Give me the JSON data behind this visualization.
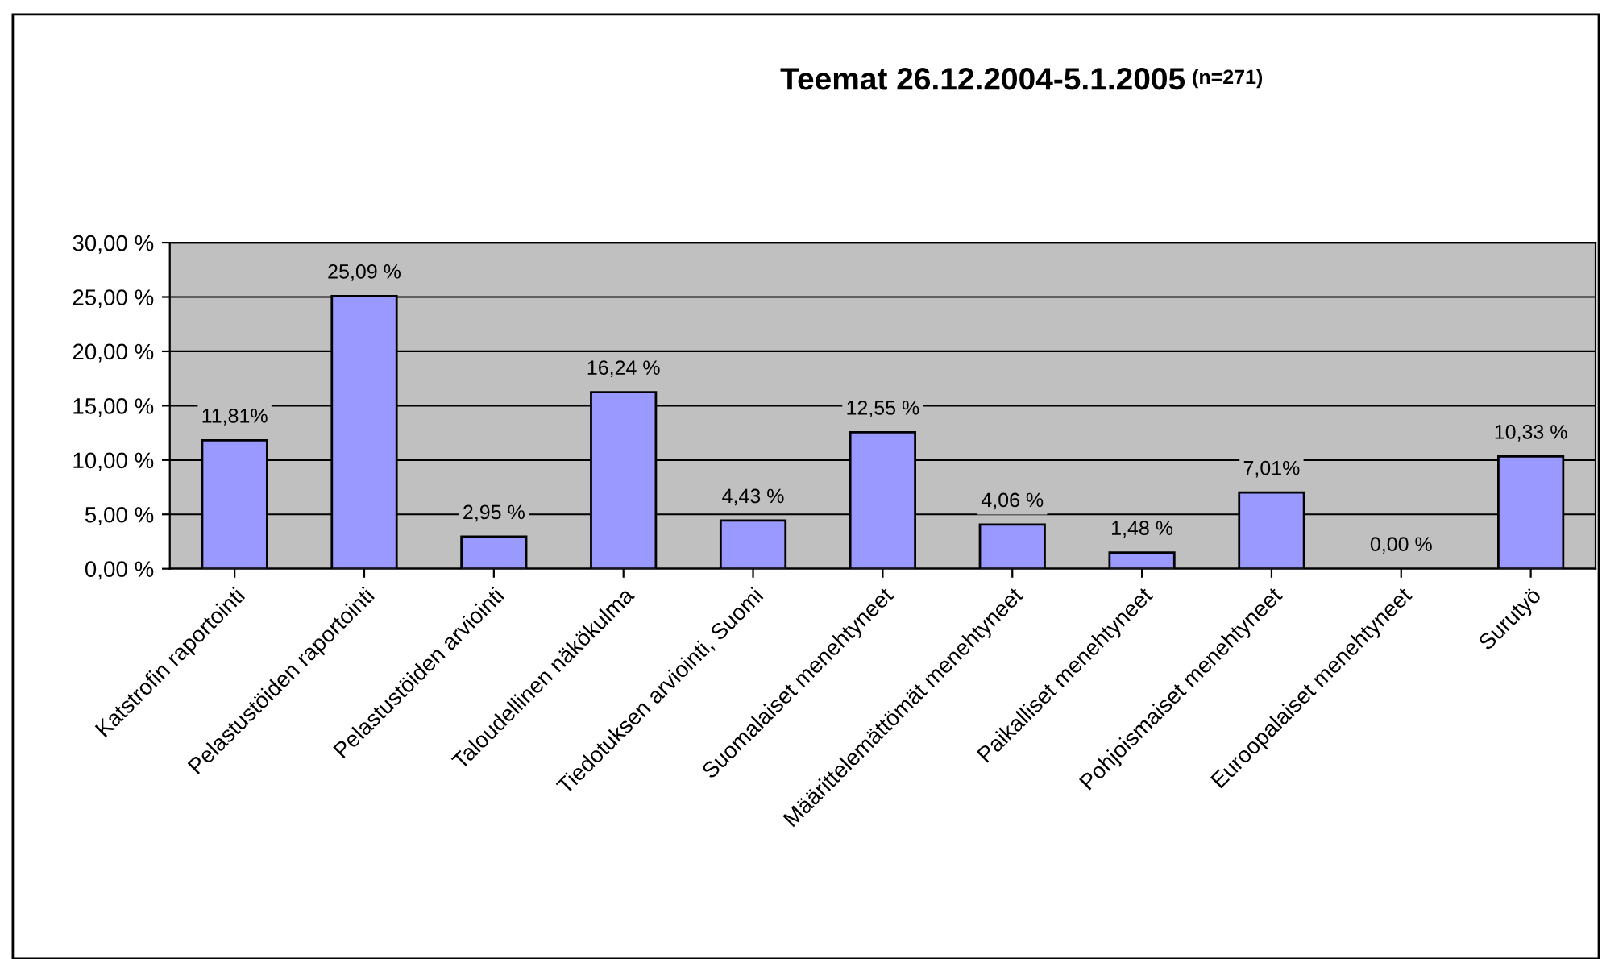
{
  "chart_data": {
    "type": "bar",
    "title": "Teemat 26.12.2004-5.1.2005",
    "subtitle": "(n=271)",
    "categories": [
      "Katstrofin raportointi",
      "Pelastustöiden raportointi",
      "Pelastustöiden arviointi",
      "Taloudellinen näkökulma",
      "Tiedotuksen arviointi, Suomi",
      "Suomalaiset menehtyneet",
      "Määrittelemättömät menehtyneet",
      "Paikalliset menehtyneet",
      "Pohjoismaiset menehtyneet",
      "Euroopalaiset menehtyneet",
      "Surutyö"
    ],
    "values": [
      11.81,
      25.09,
      2.95,
      16.24,
      4.43,
      12.55,
      4.06,
      1.48,
      7.01,
      0.0,
      10.33
    ],
    "value_labels": [
      "11,81%",
      "25,09 %",
      "2,95 %",
      "16,24 %",
      "4,43 %",
      "12,55 %",
      "4,06 %",
      "1,48 %",
      "7,01%",
      "0,00 %",
      "10,33 %"
    ],
    "color": "#9999ff",
    "ylim": [
      0,
      30
    ],
    "yticks": [
      {
        "value": 0,
        "label": "0,00 %"
      },
      {
        "value": 5,
        "label": "5,00 %"
      },
      {
        "value": 10,
        "label": "10,00 %"
      },
      {
        "value": 15,
        "label": "15,00 %"
      },
      {
        "value": 20,
        "label": "20,00 %"
      },
      {
        "value": 25,
        "label": "25,00 %"
      },
      {
        "value": 30,
        "label": "30,00 %"
      }
    ],
    "grid": "y",
    "legend": false
  }
}
